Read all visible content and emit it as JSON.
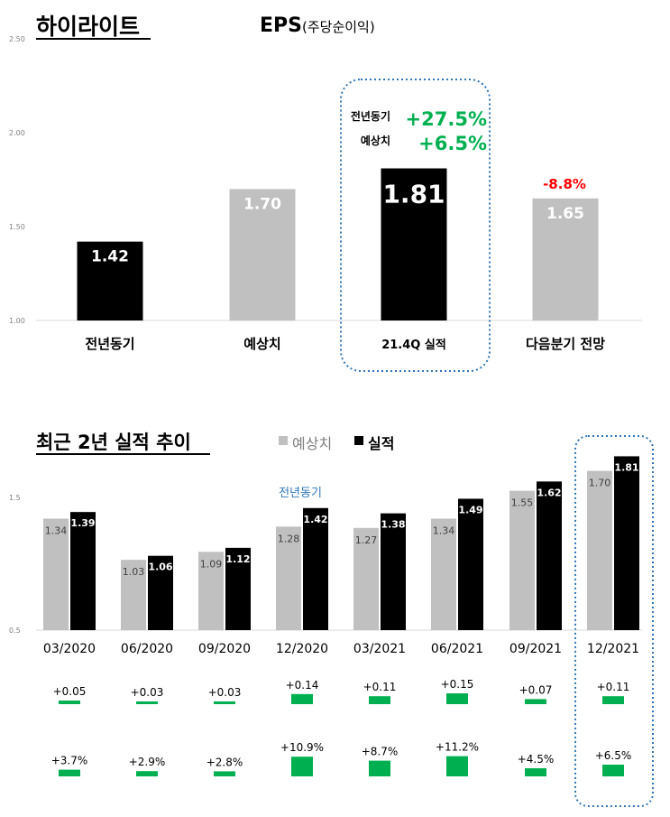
{
  "brand": "하이라이트",
  "colors": {
    "actual": "#000000",
    "estimate": "#c0c0c0",
    "green": "#00b050",
    "red": "#ff0000",
    "dotted": "#2e75b6"
  },
  "top_chart": {
    "title_main": "EPS",
    "title_sub": "(주당순이익)",
    "chart_data": {
      "type": "bar",
      "categories": [
        "전년동기",
        "예상치",
        "21.4Q 실적",
        "다음분기 전망"
      ],
      "values": [
        1.42,
        1.7,
        1.81,
        1.65
      ],
      "value_labels": [
        "1.42",
        "1.70",
        "1.81",
        "1.65"
      ],
      "kinds": [
        "actual",
        "estimate",
        "actual",
        "estimate"
      ],
      "ylim": [
        1.0,
        2.5
      ],
      "yticks": [
        1.0,
        1.5,
        2.0,
        2.5
      ],
      "ytick_labels": [
        "1.00",
        "1.50",
        "2.00",
        "2.50"
      ]
    },
    "annotations": {
      "yoy_label": "전년동기",
      "yoy_value": "+27.5%",
      "est_label": "예상치",
      "est_value": "+6.5%",
      "next_change": "-8.8%"
    }
  },
  "bottom_chart": {
    "title": "최근 2년 실적 추이",
    "legend": {
      "estimate": "예상치",
      "actual": "실적"
    },
    "yoy_tag": "전년동기",
    "chart_data": {
      "type": "bar",
      "categories": [
        "03/2020",
        "06/2020",
        "09/2020",
        "12/2020",
        "03/2021",
        "06/2021",
        "09/2021",
        "12/2021"
      ],
      "series": [
        {
          "name": "예상치",
          "values": [
            1.34,
            1.03,
            1.09,
            1.28,
            1.27,
            1.34,
            1.55,
            1.7
          ],
          "labels": [
            "1.34",
            "1.03",
            "1.09",
            "1.28",
            "1.27",
            "1.34",
            "1.55",
            "1.70"
          ]
        },
        {
          "name": "실적",
          "values": [
            1.39,
            1.06,
            1.12,
            1.42,
            1.38,
            1.49,
            1.62,
            1.81
          ],
          "labels": [
            "1.39",
            "1.06",
            "1.12",
            "1.42",
            "1.38",
            "1.49",
            "1.62",
            "1.81"
          ]
        }
      ],
      "ylim": [
        0.5,
        1.85
      ],
      "yticks": [
        0.5,
        1.5
      ],
      "ytick_labels": [
        "0.5",
        "1.5"
      ]
    },
    "surprise_abs": {
      "values": [
        0.05,
        0.03,
        0.03,
        0.14,
        0.11,
        0.15,
        0.07,
        0.11
      ],
      "labels": [
        "+0.05",
        "+0.03",
        "+0.03",
        "+0.14",
        "+0.11",
        "+0.15",
        "+0.07",
        "+0.11"
      ]
    },
    "surprise_pct": {
      "values": [
        3.7,
        2.9,
        2.8,
        10.9,
        8.7,
        11.2,
        4.5,
        6.5
      ],
      "labels": [
        "+3.7%",
        "+2.9%",
        "+2.8%",
        "+10.9%",
        "+8.7%",
        "+11.2%",
        "+4.5%",
        "+6.5%"
      ]
    }
  }
}
